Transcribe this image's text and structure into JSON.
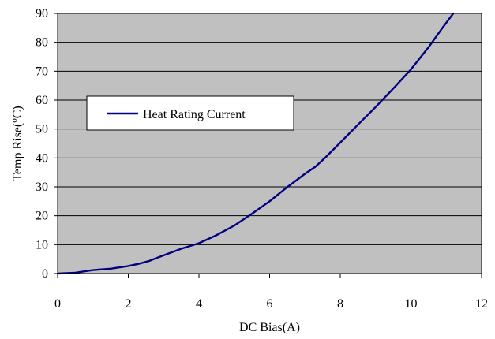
{
  "chart_data": {
    "type": "line",
    "title": "",
    "xlabel": "DC Bias(A)",
    "ylabel_main": "Temp Rise(",
    "ylabel_sup": "o",
    "ylabel_end": "C)",
    "xlim": [
      0,
      12
    ],
    "ylim": [
      0,
      90
    ],
    "x_ticks": [
      0,
      2,
      4,
      6,
      8,
      10,
      12
    ],
    "y_ticks": [
      0,
      10,
      20,
      30,
      40,
      50,
      60,
      70,
      80,
      90
    ],
    "grid": "horizontal",
    "legend_position": "upper-left",
    "colors": {
      "plot_background": "#c0c0c0",
      "series": "#000080",
      "grid": "#000000"
    },
    "series": [
      {
        "name": "Heat Rating Current",
        "x": [
          0,
          0.5,
          1,
          1.5,
          2,
          2.3,
          2.6,
          2.8,
          3,
          3.5,
          4,
          4.5,
          5,
          5.5,
          6,
          6.5,
          7,
          7.3,
          7.6,
          8,
          8.5,
          9,
          9.5,
          10,
          10.5,
          10.9,
          11.2
        ],
        "y": [
          0,
          0.3,
          1.2,
          1.7,
          2.6,
          3.4,
          4.4,
          5.4,
          6.3,
          8.6,
          10.5,
          13.3,
          16.6,
          20.7,
          25,
          29.9,
          34.5,
          37,
          40.4,
          45.3,
          51.5,
          57.6,
          64,
          70.6,
          78.3,
          85.1,
          90
        ]
      }
    ]
  }
}
